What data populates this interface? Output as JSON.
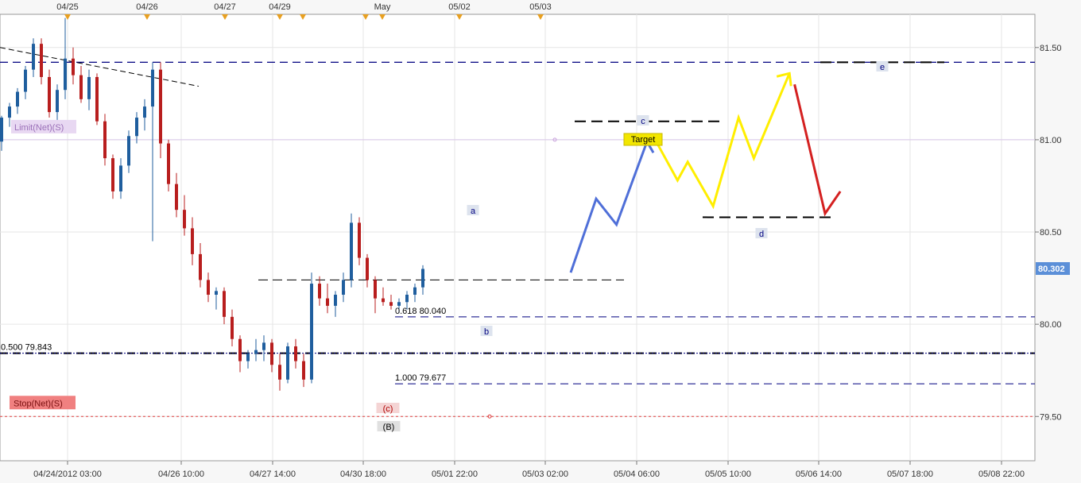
{
  "chart_data": {
    "type": "candlestick",
    "symbol_price": "80.302",
    "yaxis": {
      "ticks": [
        "81.50",
        "81.00",
        "80.50",
        "80.00",
        "79.50"
      ],
      "ylim": [
        79.26,
        81.68
      ]
    },
    "xaxis": {
      "bottom_ticks": [
        "04/24/2012 03:00",
        "04/26 10:00",
        "04/27 14:00",
        "04/30 18:00",
        "05/01 22:00",
        "05/03 02:00",
        "05/04 06:00",
        "05/05 10:00",
        "05/06 14:00",
        "05/07 18:00",
        "05/08 22:00"
      ],
      "top_ticks": [
        "04/25",
        "04/26",
        "04/27",
        "04/29",
        "May",
        "05/02",
        "05/03"
      ]
    },
    "levels": [
      {
        "name": "fib-0.500",
        "label": "0.500 79.843",
        "value": 79.843,
        "color": "#000080"
      },
      {
        "name": "fib-0.618",
        "label": "0.618 80.040",
        "value": 80.04,
        "color": "#000080"
      },
      {
        "name": "fib-1.000",
        "label": "1.000 79.677",
        "value": 79.677,
        "color": "#000080"
      },
      {
        "name": "resistance",
        "label": "",
        "value": 81.42,
        "color": "#000080"
      },
      {
        "name": "limit",
        "label": "Limit(Net)(S)",
        "value": 81.0,
        "color": "#c9a0dc"
      },
      {
        "name": "stop",
        "label": "Stop(Net)(S)",
        "value": 79.5,
        "color": "#e04040"
      }
    ],
    "wave_labels": [
      "a",
      "b",
      "c",
      "d",
      "e",
      "(c)",
      "(B)",
      "Target"
    ],
    "projections": [
      {
        "name": "blue-path",
        "color": "#4f6fd8",
        "points": [
          [
            0.0,
            80.28
          ],
          [
            2.5,
            80.68
          ],
          [
            4.5,
            80.54
          ],
          [
            7.5,
            80.99
          ]
        ]
      },
      {
        "name": "yellow-path",
        "color": "#ffee00",
        "points": [
          [
            8.5,
            80.98
          ],
          [
            10.5,
            80.78
          ],
          [
            11.5,
            80.88
          ],
          [
            14,
            80.64
          ],
          [
            16.5,
            81.12
          ],
          [
            18,
            80.9
          ],
          [
            21.5,
            81.36
          ]
        ]
      },
      {
        "name": "red-path",
        "color": "#d42020",
        "points": [
          [
            22,
            81.3
          ],
          [
            25,
            80.6
          ],
          [
            26.5,
            80.72
          ]
        ]
      }
    ],
    "candles": [
      [
        80.99,
        81.13,
        80.94,
        81.12
      ],
      [
        81.12,
        81.2,
        81.07,
        81.18
      ],
      [
        81.18,
        81.28,
        81.14,
        81.26
      ],
      [
        81.26,
        81.4,
        81.22,
        81.38
      ],
      [
        81.38,
        81.55,
        81.34,
        81.52
      ],
      [
        81.52,
        81.55,
        81.3,
        81.34
      ],
      [
        81.34,
        81.38,
        81.12,
        81.15
      ],
      [
        81.15,
        81.3,
        81.1,
        81.27
      ],
      [
        81.27,
        81.66,
        81.22,
        81.44
      ],
      [
        81.44,
        81.5,
        81.3,
        81.35
      ],
      [
        81.35,
        81.4,
        81.2,
        81.22
      ],
      [
        81.22,
        81.38,
        81.16,
        81.34
      ],
      [
        81.34,
        81.36,
        81.08,
        81.1
      ],
      [
        81.1,
        81.14,
        80.86,
        80.9
      ],
      [
        80.9,
        80.92,
        80.68,
        80.72
      ],
      [
        80.72,
        80.9,
        80.68,
        80.86
      ],
      [
        80.86,
        81.05,
        80.82,
        81.02
      ],
      [
        81.02,
        81.15,
        80.98,
        81.12
      ],
      [
        81.12,
        81.22,
        81.05,
        81.18
      ],
      [
        81.18,
        81.42,
        80.45,
        81.38
      ],
      [
        81.38,
        81.42,
        80.9,
        80.98
      ],
      [
        80.98,
        81.0,
        80.72,
        80.76
      ],
      [
        80.76,
        80.82,
        80.58,
        80.62
      ],
      [
        80.62,
        80.7,
        80.48,
        80.52
      ],
      [
        80.52,
        80.58,
        80.32,
        80.38
      ],
      [
        80.38,
        80.44,
        80.2,
        80.24
      ],
      [
        80.24,
        80.28,
        80.12,
        80.16
      ],
      [
        80.16,
        80.2,
        80.08,
        80.18
      ],
      [
        80.18,
        80.2,
        80.0,
        80.04
      ],
      [
        80.04,
        80.08,
        79.88,
        79.92
      ],
      [
        79.92,
        79.94,
        79.74,
        79.8
      ],
      [
        79.8,
        79.86,
        79.76,
        79.84
      ],
      [
        79.84,
        79.92,
        79.8,
        79.86
      ],
      [
        79.86,
        79.94,
        79.8,
        79.9
      ],
      [
        79.9,
        79.92,
        79.74,
        79.78
      ],
      [
        79.78,
        79.84,
        79.64,
        79.7
      ],
      [
        79.7,
        79.9,
        79.68,
        79.88
      ],
      [
        79.88,
        79.92,
        79.76,
        79.8
      ],
      [
        79.8,
        79.84,
        79.66,
        79.7
      ],
      [
        79.7,
        80.28,
        79.68,
        80.22
      ],
      [
        80.22,
        80.26,
        80.1,
        80.14
      ],
      [
        80.14,
        80.22,
        80.06,
        80.1
      ],
      [
        80.1,
        80.18,
        80.04,
        80.16
      ],
      [
        80.16,
        80.28,
        80.12,
        80.24
      ],
      [
        80.24,
        80.6,
        80.2,
        80.55
      ],
      [
        80.55,
        80.58,
        80.32,
        80.36
      ],
      [
        80.36,
        80.38,
        80.2,
        80.24
      ],
      [
        80.24,
        80.26,
        80.06,
        80.14
      ],
      [
        80.14,
        80.2,
        80.1,
        80.12
      ],
      [
        80.12,
        80.16,
        80.08,
        80.1
      ],
      [
        80.1,
        80.14,
        80.06,
        80.12
      ],
      [
        80.12,
        80.18,
        80.08,
        80.16
      ],
      [
        80.16,
        80.22,
        80.12,
        80.2
      ],
      [
        80.2,
        80.32,
        80.16,
        80.3
      ]
    ]
  }
}
